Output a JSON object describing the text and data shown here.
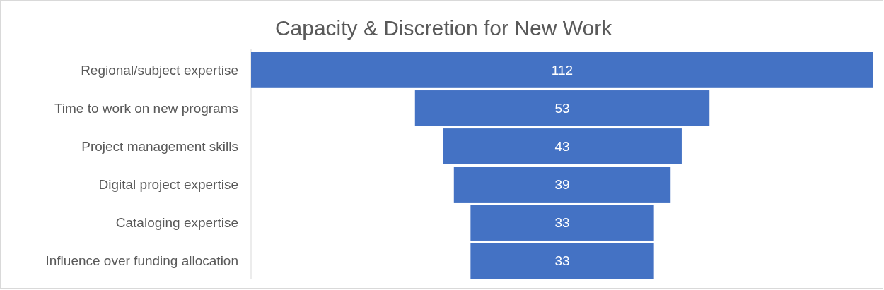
{
  "chart_data": {
    "type": "other",
    "title": "Capacity & Discretion for New Work",
    "categories": [
      "Regional/subject expertise",
      "Time to work on new programs",
      "Project management skills",
      "Digital project expertise",
      "Cataloging expertise",
      "Influence over funding allocation"
    ],
    "values": [
      112,
      53,
      43,
      39,
      33,
      33
    ],
    "color": "#4472c4",
    "data_labels": true
  }
}
